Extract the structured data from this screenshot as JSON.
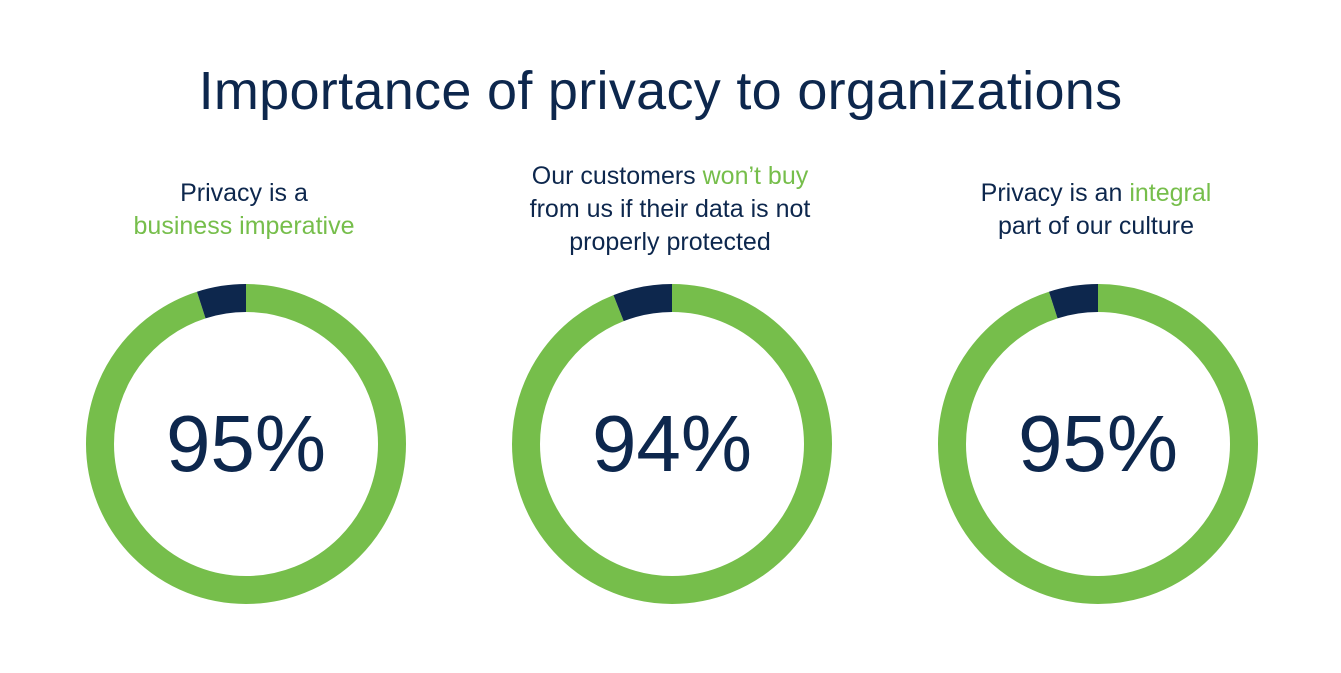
{
  "title": "Importance of privacy to organizations",
  "colors": {
    "agree": "#76be4b",
    "other": "#0d274d",
    "text": "#0d274d"
  },
  "chart_data": [
    {
      "type": "pie",
      "variant": "donut",
      "caption": [
        {
          "text": "Privacy is a",
          "highlight": false,
          "break": true
        },
        {
          "text": "business imperative",
          "highlight": true,
          "break": false
        }
      ],
      "label": "95%",
      "values": [
        95,
        5
      ]
    },
    {
      "type": "pie",
      "variant": "donut",
      "caption": [
        {
          "text": "Our customers ",
          "highlight": false,
          "break": false
        },
        {
          "text": "won’t buy",
          "highlight": true,
          "break": true
        },
        {
          "text": "from us if their data is not",
          "highlight": false,
          "break": true
        },
        {
          "text": "properly protected",
          "highlight": false,
          "break": false
        }
      ],
      "label": "94%",
      "values": [
        94,
        6
      ]
    },
    {
      "type": "pie",
      "variant": "donut",
      "caption": [
        {
          "text": "Privacy is an ",
          "highlight": false,
          "break": false
        },
        {
          "text": "integral",
          "highlight": true,
          "break": true
        },
        {
          "text": "part of our culture",
          "highlight": false,
          "break": false
        }
      ],
      "label": "95%",
      "values": [
        95,
        5
      ]
    }
  ]
}
